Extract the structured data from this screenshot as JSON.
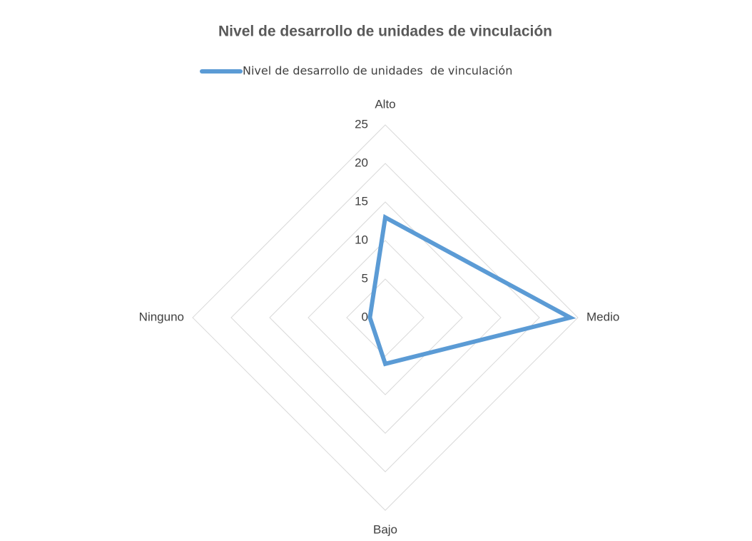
{
  "chart_data": {
    "type": "radar",
    "title": "Nivel de desarrollo de unidades de vinculación",
    "categories": [
      "Alto",
      "Medio",
      "Bajo",
      "Ninguno"
    ],
    "series": [
      {
        "name": "Nivel de desarrollo de unidades  de vinculación",
        "color": "#5b9bd5",
        "values": [
          13,
          24,
          6,
          2
        ]
      }
    ],
    "rlim": [
      0,
      25
    ],
    "rticks": [
      0,
      5,
      10,
      15,
      20,
      25
    ],
    "grid": true,
    "legend": "top"
  }
}
